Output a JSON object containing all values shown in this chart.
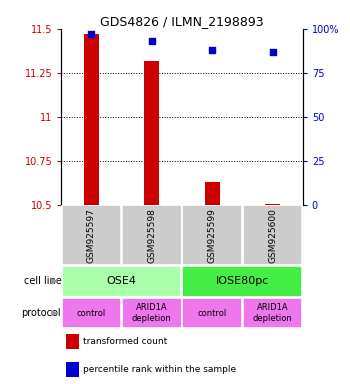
{
  "title": "GDS4826 / ILMN_2198893",
  "samples": [
    "GSM925597",
    "GSM925598",
    "GSM925599",
    "GSM925600"
  ],
  "bar_values": [
    11.47,
    11.32,
    10.63,
    10.51
  ],
  "bar_bottom": 10.5,
  "percentile_values": [
    97,
    93,
    88,
    87
  ],
  "ylim": [
    10.5,
    11.5
  ],
  "yticks": [
    10.5,
    10.75,
    11.0,
    11.25,
    11.5
  ],
  "ytick_labels": [
    "10.5",
    "10.75",
    "11",
    "11.25",
    "11.5"
  ],
  "right_ytick_labels": [
    "0",
    "25",
    "50",
    "75",
    "100%"
  ],
  "right_yticks": [
    0,
    25,
    50,
    75,
    100
  ],
  "bar_color": "#cc0000",
  "percentile_color": "#0000cc",
  "cell_line_groups": [
    {
      "label": "OSE4",
      "start": 0,
      "end": 1,
      "color": "#aaffaa"
    },
    {
      "label": "IOSE80pc",
      "start": 2,
      "end": 3,
      "color": "#44ee44"
    }
  ],
  "protocol_labels": [
    "control",
    "ARID1A\ndepletion",
    "control",
    "ARID1A\ndepletion"
  ],
  "protocol_color": "#ee77ee",
  "sample_box_color": "#cccccc",
  "legend_red_label": "transformed count",
  "legend_blue_label": "percentile rank within the sample",
  "background_color": "#ffffff",
  "left_label_color": "#888888"
}
